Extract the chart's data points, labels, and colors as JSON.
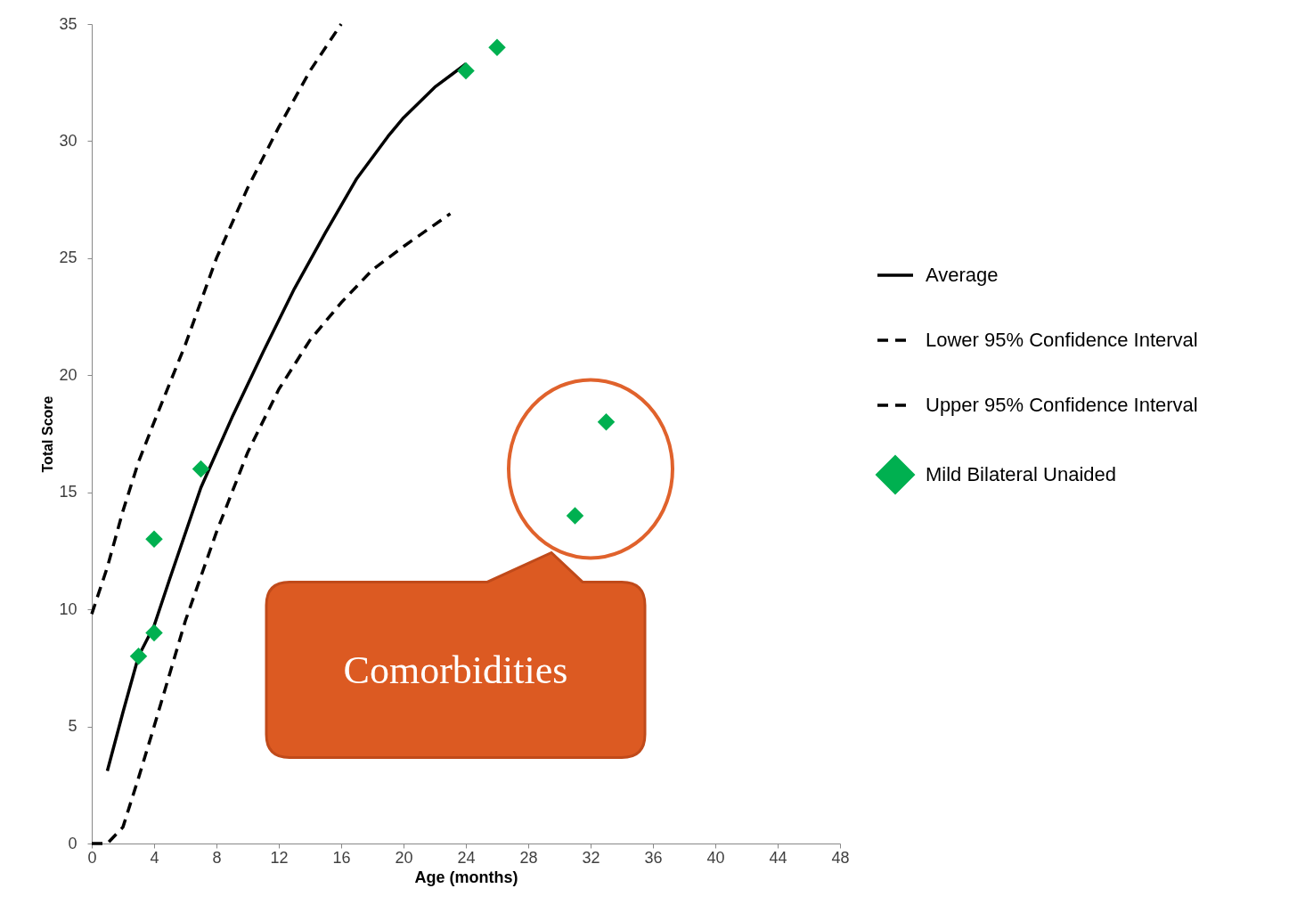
{
  "chart_data": {
    "type": "line",
    "xlabel": "Age (months)",
    "ylabel": "Total Score",
    "xlim": [
      0,
      48
    ],
    "ylim": [
      0,
      35
    ],
    "xticks": [
      0,
      4,
      8,
      12,
      16,
      20,
      24,
      28,
      32,
      36,
      40,
      44,
      48
    ],
    "yticks": [
      0,
      5,
      10,
      15,
      20,
      25,
      30,
      35
    ],
    "legend": "right",
    "series": [
      {
        "name": "Average",
        "color": "#000000",
        "line_style": "solid",
        "x": [
          1,
          2,
          3,
          4,
          5,
          7,
          9,
          11,
          13,
          15,
          17,
          19,
          20,
          22,
          24
        ],
        "values": [
          3.1,
          5.6,
          8,
          9.3,
          11.3,
          15.2,
          18.2,
          21,
          23.7,
          26.1,
          28.4,
          30.2,
          31,
          32.3,
          33.3
        ]
      },
      {
        "name": "Lower 95% Confidence Interval",
        "color": "#000000",
        "line_style": "dashed",
        "x": [
          0,
          1,
          2,
          3,
          4,
          6,
          8,
          10,
          12,
          14,
          16,
          18,
          20,
          23
        ],
        "values": [
          0,
          0,
          0.7,
          2.8,
          5,
          9.5,
          13.3,
          16.7,
          19.4,
          21.5,
          23.1,
          24.5,
          25.5,
          26.9
        ]
      },
      {
        "name": "Upper 95% Confidence Interval",
        "color": "#000000",
        "line_style": "dashed",
        "x": [
          0,
          1,
          2,
          3,
          4,
          6,
          8,
          10,
          12,
          14,
          16
        ],
        "values": [
          9.8,
          11.8,
          14.2,
          16.3,
          18,
          21.3,
          25,
          28,
          30.6,
          33,
          35
        ]
      },
      {
        "name": "Mild Bilateral Unaided",
        "type": "scatter",
        "color": "#00b050",
        "marker": "diamond",
        "x": [
          3,
          4,
          4,
          7,
          24,
          26,
          31,
          33
        ],
        "values": [
          8,
          9,
          13,
          16,
          33,
          34,
          14,
          18
        ]
      }
    ],
    "annotations": [
      "Comorbidities"
    ]
  }
}
